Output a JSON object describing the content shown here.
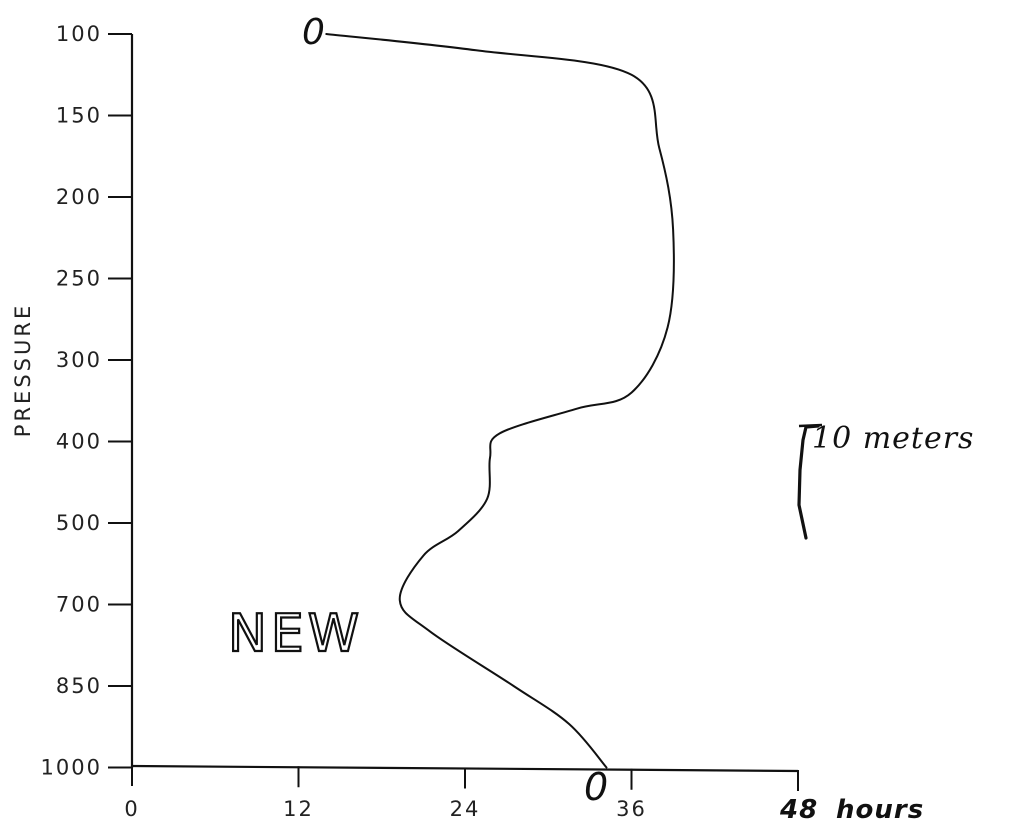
{
  "chart_data": {
    "type": "line",
    "ylabel": "PRESSURE",
    "x_unit_label": "hours",
    "x_ticks": [
      0,
      12,
      24,
      36,
      48
    ],
    "x_tick_labels": [
      "0",
      "12",
      "24",
      "36",
      "48"
    ],
    "xlim": [
      0,
      48
    ],
    "y_ticks": [
      100,
      150,
      200,
      250,
      300,
      400,
      500,
      700,
      850,
      1000
    ],
    "y_tick_labels": [
      "100",
      "150",
      "200",
      "250",
      "300",
      "400",
      "500",
      "700",
      "850",
      "1000"
    ],
    "y_scale": "categorical pressure levels (100 at top, 1000 at bottom, evenly spaced)",
    "series": [
      {
        "name": "NEW",
        "points": [
          {
            "x": 14.0,
            "y": 100
          },
          {
            "x": 24.8,
            "y": 110
          },
          {
            "x": 36.0,
            "y": 125
          },
          {
            "x": 38.0,
            "y": 170
          },
          {
            "x": 39.0,
            "y": 220
          },
          {
            "x": 38.6,
            "y": 280
          },
          {
            "x": 36.0,
            "y": 340
          },
          {
            "x": 32.0,
            "y": 360
          },
          {
            "x": 26.5,
            "y": 390
          },
          {
            "x": 25.8,
            "y": 420
          },
          {
            "x": 25.6,
            "y": 470
          },
          {
            "x": 23.5,
            "y": 520
          },
          {
            "x": 21.0,
            "y": 580
          },
          {
            "x": 19.3,
            "y": 690
          },
          {
            "x": 21.5,
            "y": 750
          },
          {
            "x": 27.5,
            "y": 850
          },
          {
            "x": 31.5,
            "y": 920
          },
          {
            "x": 34.2,
            "y": 1000
          }
        ]
      }
    ],
    "annotations": {
      "series_label": "NEW",
      "top_marker": "0",
      "bottom_marker": "0",
      "scale_bar_label": "10 meters"
    },
    "grid": false
  }
}
